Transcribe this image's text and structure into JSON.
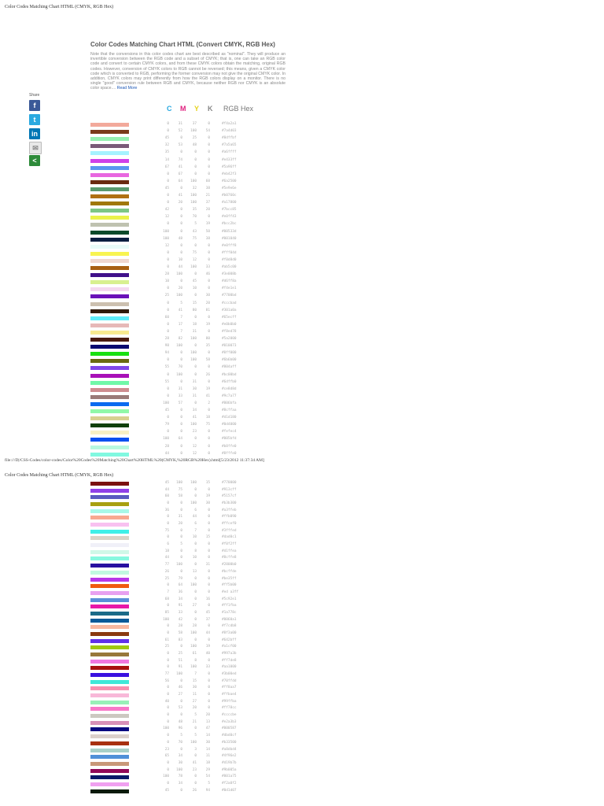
{
  "page1_header": "Color Codes Matching Chart HTML (CMYK, RGB Hex)",
  "page2_header": "Color Codes Matching Chart HTML (CMYK, RGB Hex)",
  "footer": "file:///D|/CSS-Codes/color-codes/Color%20Codes%20Matching%20Chart%20HTML%20(CMYK,%20RGB%20Hex).html[5/23/2012 11:37:34 AM]",
  "title": "Color Codes Matching Chart HTML (Convert CMYK, RGB Hex)",
  "intro": "Note that the conversions in this color codes chart are best described as \"nominal\". They will produce an invertible conversion between the RGB code and a subset of CMYK; that is, one can take an RGB color code and convert to certain CMYK colors, and from these CMYK colors obtain the matching, original RGB codes. However, conversion of CMYK colors to RGB cannot be reversed; this means, given a CMYK color code which is converted to RGB, performing the former conversion may not give the original CMYK color. In addition, CMYK colors may print differently from how the RGB colors display on a monitor. There is no single \"good\" conversion rule between RGB and CMYK, because neither RGB nor CMYK is an absolute color space....",
  "read_more": "Read More",
  "share": {
    "label": "Share",
    "buttons": [
      {
        "name": "facebook-icon",
        "color": "#3b5998",
        "glyph": "f"
      },
      {
        "name": "twitter-icon",
        "color": "#2aa9e0",
        "glyph": "t"
      },
      {
        "name": "linkedin-icon",
        "color": "#0077b5",
        "glyph": "in"
      },
      {
        "name": "email-icon",
        "color": "#e8e8e8",
        "glyph": "✉"
      },
      {
        "name": "share-icon",
        "color": "#2e8b3a",
        "glyph": "<"
      }
    ]
  },
  "columns": {
    "c": "C",
    "m": "M",
    "y": "Y",
    "k": "K",
    "rgb": "RGB Hex"
  },
  "column_colors": {
    "c": "#28a8e0",
    "m": "#e0207f",
    "y": "#e5d21b",
    "k": "#888888"
  },
  "rows_page1": [
    {
      "c": "0",
      "m": "31",
      "y": "37",
      "k": "0",
      "hex": "#f4a2a1",
      "color": "#f2a99b"
    },
    {
      "c": "0",
      "m": "52",
      "y": "100",
      "k": "54",
      "hex": "#7a4d03",
      "color": "#7a3b1a"
    },
    {
      "c": "45",
      "m": "0",
      "y": "25",
      "k": "0",
      "hex": "#8dffbf",
      "color": "#96f0b0"
    },
    {
      "c": "32",
      "m": "53",
      "y": "48",
      "k": "0",
      "hex": "#7a5a65",
      "color": "#7a5a78"
    },
    {
      "c": "35",
      "m": "0",
      "y": "0",
      "k": "0",
      "hex": "#a6ffff",
      "color": "#a5f2ff"
    },
    {
      "c": "14",
      "m": "74",
      "y": "0",
      "k": "0",
      "hex": "#e433ff",
      "color": "#cf40e8"
    },
    {
      "c": "67",
      "m": "41",
      "y": "0",
      "k": "0",
      "hex": "#5a96ff",
      "color": "#5a96f0"
    },
    {
      "c": "0",
      "m": "67",
      "y": "0",
      "k": "0",
      "hex": "#eb42f3",
      "color": "#e866e0"
    },
    {
      "c": "0",
      "m": "64",
      "y": "100",
      "k": "60",
      "hex": "#6a2500",
      "color": "#6a2a10"
    },
    {
      "c": "45",
      "m": "0",
      "y": "32",
      "k": "38",
      "hex": "#5e9e6e",
      "color": "#5a9a6e"
    },
    {
      "c": "0",
      "m": "41",
      "y": "100",
      "k": "21",
      "hex": "#b0760c",
      "color": "#b07012"
    },
    {
      "c": "0",
      "m": "20",
      "y": "100",
      "k": "37",
      "hex": "#a17800",
      "color": "#a07808"
    },
    {
      "c": "42",
      "m": "0",
      "y": "35",
      "k": "20",
      "hex": "#7bcc85",
      "color": "#7cc685"
    },
    {
      "c": "12",
      "m": "0",
      "y": "70",
      "k": "0",
      "hex": "#e0ff43",
      "color": "#eaf24a"
    },
    {
      "c": "0",
      "m": "0",
      "y": "5",
      "k": "19",
      "hex": "#bcc2bc",
      "color": "#bfc2b0"
    },
    {
      "c": "100",
      "m": "0",
      "y": "43",
      "k": "50",
      "hex": "#00533d",
      "color": "#0a4a2a"
    },
    {
      "c": "100",
      "m": "48",
      "y": "75",
      "k": "38",
      "hex": "#001040",
      "color": "#0a1e40"
    },
    {
      "c": "12",
      "m": "0",
      "y": "0",
      "k": "0",
      "hex": "#e0fff8",
      "color": "#e8fbf8"
    },
    {
      "c": "0",
      "m": "0",
      "y": "75",
      "k": "0",
      "hex": "#fff04d",
      "color": "#f8f450"
    },
    {
      "c": "0",
      "m": "10",
      "y": "12",
      "k": "0",
      "hex": "#f0d8d0",
      "color": "#f0d8d0"
    },
    {
      "c": "0",
      "m": "44",
      "y": "100",
      "k": "33",
      "hex": "#ab5c00",
      "color": "#a86012"
    },
    {
      "c": "28",
      "m": "100",
      "y": "0",
      "k": "46",
      "hex": "#3e008b",
      "color": "#40108a"
    },
    {
      "c": "10",
      "m": "0",
      "y": "45",
      "k": "0",
      "hex": "#d6ff8a",
      "color": "#d8f090"
    },
    {
      "c": "0",
      "m": "20",
      "y": "10",
      "k": "0",
      "hex": "#f4e1e1",
      "color": "#f4d8f0"
    },
    {
      "c": "25",
      "m": "100",
      "y": "0",
      "k": "30",
      "hex": "#7700bd",
      "color": "#6a10b8"
    },
    {
      "c": "0",
      "m": "5",
      "y": "15",
      "k": "20",
      "hex": "#cccbad",
      "color": "#ccc0b0"
    },
    {
      "c": "0",
      "m": "41",
      "y": "80",
      "k": "81",
      "hex": "#301a0a",
      "color": "#301a0a"
    },
    {
      "c": "60",
      "m": "7",
      "y": "0",
      "k": "0",
      "hex": "#65ecff",
      "color": "#60ecf8"
    },
    {
      "c": "0",
      "m": "17",
      "y": "18",
      "k": "19",
      "hex": "#e0b0b0",
      "color": "#e6b8b8"
    },
    {
      "c": "0",
      "m": "7",
      "y": "31",
      "k": "0",
      "hex": "#f8ed78",
      "color": "#f8ea90"
    },
    {
      "c": "28",
      "m": "82",
      "y": "100",
      "k": "80",
      "hex": "#5a2000",
      "color": "#4a1a10"
    },
    {
      "c": "98",
      "m": "100",
      "y": "0",
      "k": "35",
      "hex": "#010073",
      "color": "#0a0a70"
    },
    {
      "c": "94",
      "m": "0",
      "y": "100",
      "k": "0",
      "hex": "#0ff000",
      "color": "#18e010"
    },
    {
      "c": "0",
      "m": "0",
      "y": "100",
      "k": "58",
      "hex": "#6b6b00",
      "color": "#6a6a10"
    },
    {
      "c": "55",
      "m": "70",
      "y": "0",
      "k": "0",
      "hex": "#804aff",
      "color": "#8048e8"
    },
    {
      "c": "0",
      "m": "100",
      "y": "0",
      "k": "26",
      "hex": "#bc00bd",
      "color": "#a810b8"
    },
    {
      "c": "55",
      "m": "0",
      "y": "31",
      "k": "0",
      "hex": "#6dffb0",
      "color": "#70f8a8"
    },
    {
      "c": "0",
      "m": "31",
      "y": "30",
      "k": "19",
      "hex": "#ce8d8d",
      "color": "#ce8d90"
    },
    {
      "c": "0",
      "m": "33",
      "y": "31",
      "k": "41",
      "hex": "#9c7a77",
      "color": "#9a7a78"
    },
    {
      "c": "100",
      "m": "57",
      "y": "0",
      "k": "2",
      "hex": "#006bfa",
      "color": "#0a6af0"
    },
    {
      "c": "45",
      "m": "0",
      "y": "34",
      "k": "0",
      "hex": "#8cffaa",
      "color": "#90f8a8"
    },
    {
      "c": "0",
      "m": "0",
      "y": "41",
      "k": "18",
      "hex": "#d1d180",
      "color": "#d8d090"
    },
    {
      "c": "79",
      "m": "0",
      "y": "100",
      "k": "75",
      "hex": "#0d4000",
      "color": "#10400a"
    },
    {
      "c": "0",
      "m": "0",
      "y": "23",
      "k": "0",
      "hex": "#fefec4",
      "color": "#f8f0c4"
    },
    {
      "c": "100",
      "m": "64",
      "y": "0",
      "k": "0",
      "hex": "#005bfd",
      "color": "#0a50f0"
    },
    {
      "c": "28",
      "m": "0",
      "y": "12",
      "k": "0",
      "hex": "#b8ffe0",
      "color": "#b8f8e0"
    },
    {
      "c": "44",
      "m": "0",
      "y": "12",
      "k": "0",
      "hex": "#8fffe0",
      "color": "#80f8e0"
    }
  ],
  "rows_page2": [
    {
      "c": "45",
      "m": "100",
      "y": "100",
      "k": "15",
      "hex": "#770000",
      "color": "#7a1010"
    },
    {
      "c": "44",
      "m": "75",
      "y": "0",
      "k": "0",
      "hex": "#913cff",
      "color": "#9040e8"
    },
    {
      "c": "60",
      "m": "58",
      "y": "0",
      "k": "19",
      "hex": "#5157cf",
      "color": "#5a5ac0"
    },
    {
      "c": "0",
      "m": "0",
      "y": "100",
      "k": "30",
      "hex": "#b3b300",
      "color": "#a8a010"
    },
    {
      "c": "36",
      "m": "0",
      "y": "6",
      "k": "0",
      "hex": "#a3ffeb",
      "color": "#a8f8e8"
    },
    {
      "c": "0",
      "m": "31",
      "y": "44",
      "k": "0",
      "hex": "#ffb090",
      "color": "#f8a890"
    },
    {
      "c": "0",
      "m": "20",
      "y": "6",
      "k": "0",
      "hex": "#ffcef0",
      "color": "#f8c0f0"
    },
    {
      "c": "75",
      "m": "0",
      "y": "7",
      "k": "0",
      "hex": "#3fffed",
      "color": "#40f0e8"
    },
    {
      "c": "0",
      "m": "0",
      "y": "10",
      "k": "15",
      "hex": "#dad0c1",
      "color": "#dad4c8"
    },
    {
      "c": "6",
      "m": "5",
      "y": "0",
      "k": "0",
      "hex": "#f0f2ff",
      "color": "#f0f0f8"
    },
    {
      "c": "18",
      "m": "0",
      "y": "8",
      "k": "0",
      "hex": "#d1ffea",
      "color": "#d0f8e8"
    },
    {
      "c": "44",
      "m": "0",
      "y": "10",
      "k": "0",
      "hex": "#8cffe8",
      "color": "#88f8e0"
    },
    {
      "c": "77",
      "m": "100",
      "y": "0",
      "k": "31",
      "hex": "#2800b0",
      "color": "#2810a0"
    },
    {
      "c": "26",
      "m": "0",
      "y": "13",
      "k": "0",
      "hex": "#bcffde",
      "color": "#c0f8e0"
    },
    {
      "c": "25",
      "m": "79",
      "y": "0",
      "k": "0",
      "hex": "#be35ff",
      "color": "#b838e8"
    },
    {
      "c": "0",
      "m": "64",
      "y": "100",
      "k": "0",
      "hex": "#ff5b00",
      "color": "#f05a10"
    },
    {
      "c": "7",
      "m": "36",
      "y": "0",
      "k": "0",
      "hex": "#ed a3ff",
      "color": "#e8a0f0"
    },
    {
      "c": "68",
      "m": "34",
      "y": "0",
      "k": "16",
      "hex": "#5c92e1",
      "color": "#5a90d8"
    },
    {
      "c": "0",
      "m": "91",
      "y": "27",
      "k": "0",
      "hex": "#ff1fba",
      "color": "#e818a8"
    },
    {
      "c": "85",
      "m": "33",
      "y": "0",
      "k": "45",
      "hex": "#1a778c",
      "color": "#1a6a88"
    },
    {
      "c": "100",
      "m": "42",
      "y": "0",
      "k": "37",
      "hex": "#0060a1",
      "color": "#0a5a98"
    },
    {
      "c": "0",
      "m": "28",
      "y": "28",
      "k": "0",
      "hex": "#f7cdb8",
      "color": "#f8b8a0"
    },
    {
      "c": "0",
      "m": "58",
      "y": "100",
      "k": "44",
      "hex": "#8f3a00",
      "color": "#8a3a10"
    },
    {
      "c": "61",
      "m": "83",
      "y": "0",
      "k": "0",
      "hex": "#642bff",
      "color": "#6030e8"
    },
    {
      "c": "25",
      "m": "0",
      "y": "100",
      "k": "19",
      "hex": "#a1cf00",
      "color": "#a0c810"
    },
    {
      "c": "0",
      "m": "25",
      "y": "61",
      "k": "40",
      "hex": "#997a3b",
      "color": "#98783a"
    },
    {
      "c": "0",
      "m": "51",
      "y": "8",
      "k": "0",
      "hex": "#ff7de8",
      "color": "#f078e0"
    },
    {
      "c": "0",
      "m": "91",
      "y": "100",
      "k": "33",
      "hex": "#aa1000",
      "color": "#a81010"
    },
    {
      "c": "77",
      "m": "100",
      "y": "7",
      "k": "0",
      "hex": "#3b00ed",
      "color": "#3a10e0"
    },
    {
      "c": "56",
      "m": "0",
      "y": "15",
      "k": "0",
      "hex": "#70ffdd",
      "color": "#40e8d8"
    },
    {
      "c": "0",
      "m": "46",
      "y": "30",
      "k": "0",
      "hex": "#ff8aa7",
      "color": "#f890b0"
    },
    {
      "c": "0",
      "m": "27",
      "y": "11",
      "k": "0",
      "hex": "#ffbae4",
      "color": "#f8b8d8"
    },
    {
      "c": "40",
      "m": "0",
      "y": "27",
      "k": "0",
      "hex": "#99ffba",
      "color": "#98f0b8"
    },
    {
      "c": "0",
      "m": "53",
      "y": "20",
      "k": "0",
      "hex": "#ff78cc",
      "color": "#f878c8"
    },
    {
      "c": "0",
      "m": "0",
      "y": "5",
      "k": "20",
      "hex": "#ccccbe",
      "color": "#ccc8c0"
    },
    {
      "c": "0",
      "m": "48",
      "y": "21",
      "k": "13",
      "hex": "#e2a3b3",
      "color": "#d890b8"
    },
    {
      "c": "100",
      "m": "96",
      "y": "0",
      "k": "47",
      "hex": "#000587",
      "color": "#0a0a80"
    },
    {
      "c": "0",
      "m": "5",
      "y": "5",
      "k": "14",
      "hex": "#dbd0cf",
      "color": "#dbd0cb"
    },
    {
      "c": "0",
      "m": "70",
      "y": "100",
      "k": "30",
      "hex": "#b33500",
      "color": "#a83010"
    },
    {
      "c": "23",
      "m": "0",
      "y": "3",
      "k": "14",
      "hex": "#a8dbd4",
      "color": "#a8d0c8"
    },
    {
      "c": "65",
      "m": "34",
      "y": "0",
      "k": "11",
      "hex": "#4f96e2",
      "color": "#5090d8"
    },
    {
      "c": "0",
      "m": "30",
      "y": "41",
      "k": "18",
      "hex": "#d19b7b",
      "color": "#c89878"
    },
    {
      "c": "0",
      "m": "100",
      "y": "23",
      "k": "29",
      "hex": "#9b005a",
      "color": "#900a58"
    },
    {
      "c": "100",
      "m": "78",
      "y": "0",
      "k": "54",
      "hex": "#001a75",
      "color": "#0a1a68"
    },
    {
      "c": "0",
      "m": "34",
      "y": "0",
      "k": "5",
      "hex": "#f2a0f2",
      "color": "#f0a0f0"
    },
    {
      "c": "45",
      "m": "0",
      "y": "26",
      "k": "94",
      "hex": "#0d1d07",
      "color": "#0a1a0a"
    }
  ]
}
